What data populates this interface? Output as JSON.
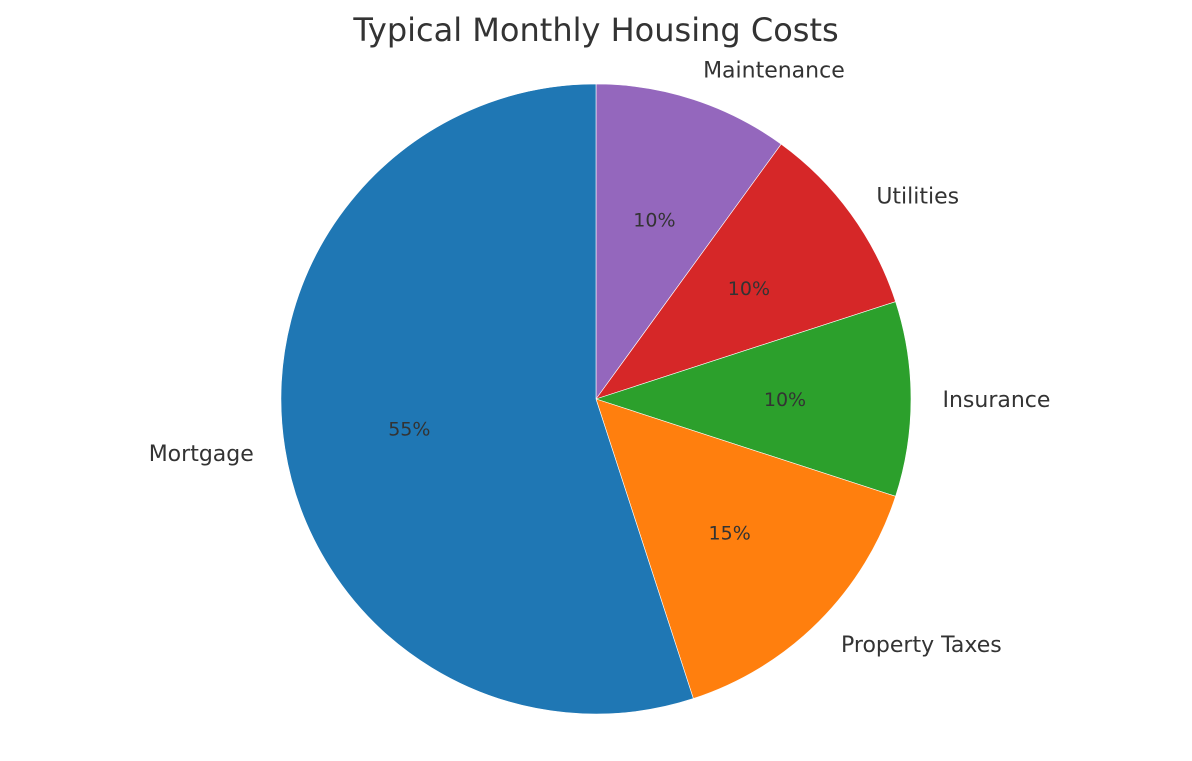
{
  "chart_data": {
    "type": "pie",
    "title": "Typical Monthly Housing Costs",
    "categories": [
      "Maintenance",
      "Utilities",
      "Insurance",
      "Property Taxes",
      "Mortgage"
    ],
    "values": [
      10,
      10,
      10,
      15,
      55
    ],
    "value_labels": [
      "10%",
      "10%",
      "10%",
      "15%",
      "55%"
    ],
    "colors": [
      "#9467bd",
      "#d62728",
      "#2ca02c",
      "#ff7f0e",
      "#1f77b4"
    ],
    "start_angle": 90,
    "direction": "clockwise",
    "legend": "none (labels outside slices)",
    "xlabel": "",
    "ylabel": ""
  }
}
